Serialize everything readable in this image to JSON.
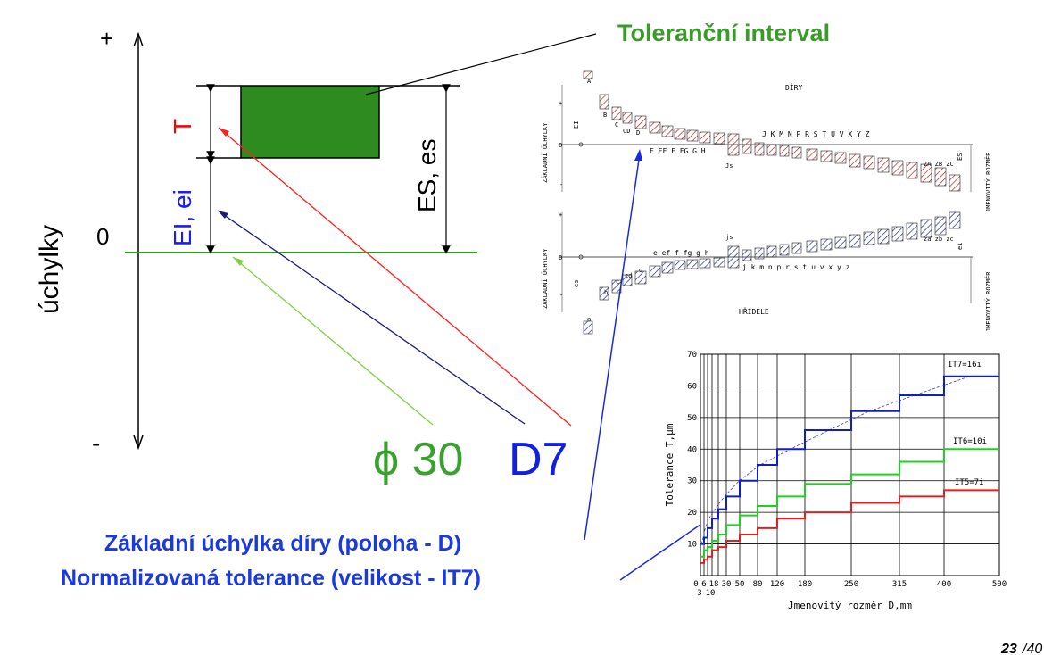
{
  "left_diagram": {
    "plus": "+",
    "minus": "-",
    "zero": "0",
    "axis_label": "úchylky",
    "tol_label": "T",
    "lower_dev_label": "EI, ei",
    "upper_dev_label": "ES, es",
    "title": "Toleranční interval",
    "designation_phi": "ϕ 30",
    "designation_code": "D7",
    "colors": {
      "zone": "#2e8b20",
      "title": "#3a9a2a",
      "T": "#ff0000",
      "EI": "#1a1aff",
      "D7": "#1020e0"
    }
  },
  "notes": {
    "line1": "Základní úchylka díry (poloha - D)",
    "line2": "Normalizovaná tolerance (velikost - IT7)"
  },
  "dev_chart": {
    "title_top": "DÍRY",
    "title_bottom": "HŘÍDELE",
    "ylabel_top": "ZÁKLADNÍ ÚCHYLKY",
    "ylabel_bottom": "ZÁKLADNÍ ÚCHYLKY",
    "right_label_top": "JMENOVITÝ ROZMĚR",
    "right_label_bottom": "JMENOVITÝ ROZMĚR",
    "EI": "EI",
    "es": "es",
    "ES": "ES",
    "ei": "ei",
    "zero": "0",
    "plus": "+",
    "minus": "-",
    "holes_top_row": "J  K  M  N  P  R  S  T  U  V  X  Y  Z",
    "holes_bottom_row": "E  EF  F  FG G  H",
    "holes_left": [
      "A",
      "B",
      "C",
      "CD",
      "D"
    ],
    "holes_right": "ZA ZB ZC",
    "holes_js": "Js",
    "shafts_top_row": "e  ef  f  fg g  h",
    "shafts_bottom_row": "j  k  m  n  p  r  s  t  u  v  x  y  z",
    "shafts_left": [
      "a",
      "b",
      "c",
      "cd",
      "d"
    ],
    "shafts_right": "za zb zc",
    "shafts_js": "js"
  },
  "chart_data": {
    "type": "line",
    "xlabel": "Jmenovitý rozměr D,mm",
    "ylabel": "Tolerance T,μm",
    "x_ticks": [
      "0",
      "6",
      "18",
      "30",
      "50",
      "80",
      "120",
      "180",
      "250",
      "315",
      "400",
      "500"
    ],
    "x_ticks_extra": [
      "3",
      "10"
    ],
    "y_ticks": [
      "10",
      "20",
      "30",
      "40",
      "50",
      "60",
      "70"
    ],
    "ylim": [
      0,
      70
    ],
    "xlim": [
      0,
      500
    ],
    "series": [
      {
        "name": "IT7=16i",
        "color": "#1020c0",
        "steps": [
          [
            0,
            3,
            10
          ],
          [
            3,
            6,
            12
          ],
          [
            6,
            10,
            15
          ],
          [
            10,
            18,
            18
          ],
          [
            18,
            30,
            21
          ],
          [
            30,
            50,
            25
          ],
          [
            50,
            80,
            30
          ],
          [
            80,
            120,
            35
          ],
          [
            120,
            180,
            40
          ],
          [
            180,
            250,
            46
          ],
          [
            250,
            315,
            52
          ],
          [
            315,
            400,
            57
          ],
          [
            400,
            500,
            63
          ]
        ]
      },
      {
        "name": "IT6=10i",
        "color": "#20d020",
        "steps": [
          [
            0,
            3,
            6
          ],
          [
            3,
            6,
            8
          ],
          [
            6,
            10,
            9
          ],
          [
            10,
            18,
            11
          ],
          [
            18,
            30,
            13
          ],
          [
            30,
            50,
            16
          ],
          [
            50,
            80,
            19
          ],
          [
            80,
            120,
            22
          ],
          [
            120,
            180,
            25
          ],
          [
            180,
            250,
            29
          ],
          [
            250,
            315,
            32
          ],
          [
            315,
            400,
            36
          ],
          [
            400,
            500,
            40
          ]
        ]
      },
      {
        "name": "IT5=7i",
        "color": "#e02020",
        "steps": [
          [
            0,
            3,
            4
          ],
          [
            3,
            6,
            5
          ],
          [
            6,
            10,
            6
          ],
          [
            10,
            18,
            8
          ],
          [
            18,
            30,
            9
          ],
          [
            30,
            50,
            11
          ],
          [
            50,
            80,
            13
          ],
          [
            80,
            120,
            15
          ],
          [
            120,
            180,
            18
          ],
          [
            180,
            250,
            20
          ],
          [
            250,
            315,
            23
          ],
          [
            315,
            400,
            25
          ],
          [
            400,
            500,
            27
          ]
        ]
      }
    ]
  },
  "page": {
    "number": "23",
    "total": "/40"
  }
}
